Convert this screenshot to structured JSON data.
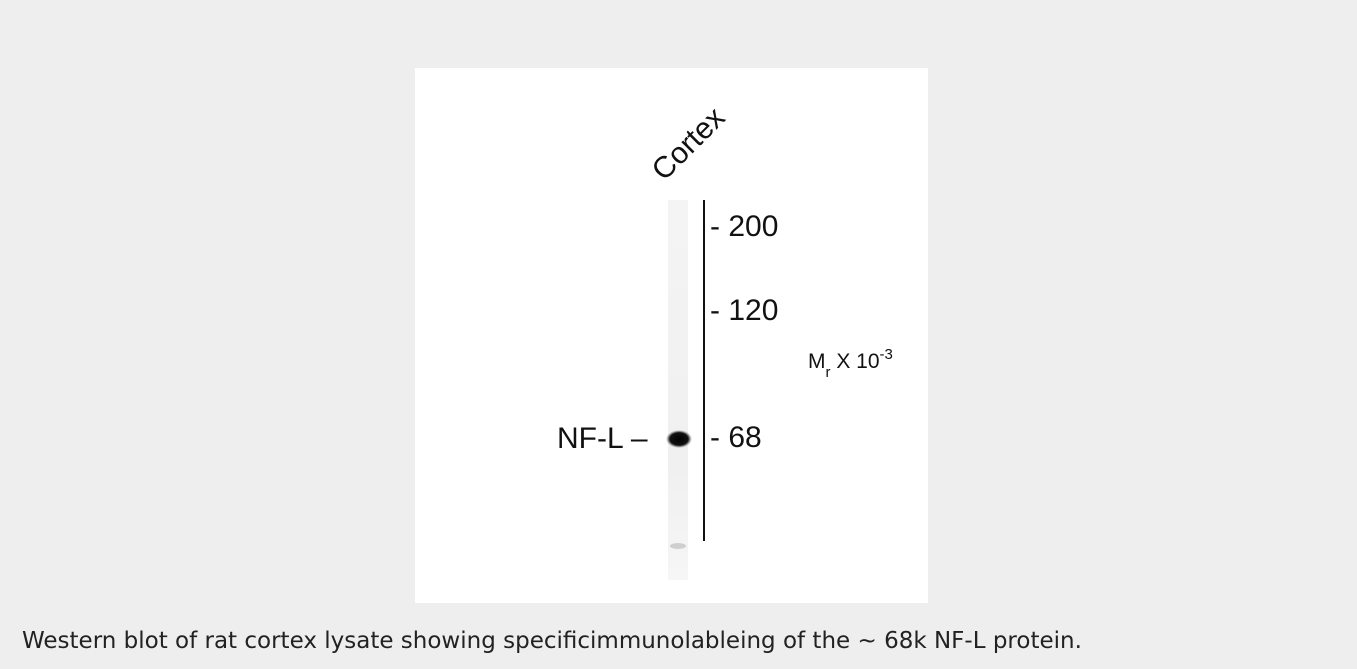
{
  "figure": {
    "lane_label": "Cortex",
    "band_label": "NF-L –",
    "markers": [
      "- 200",
      "- 120",
      "- 68"
    ],
    "axis_label": {
      "base": "M",
      "sub": "r",
      "middle": " X 10",
      "sup": "-3"
    }
  },
  "caption": "Western blot of rat cortex lysate showing specificimmunolableing of the ∼ 68k NF-L protein."
}
